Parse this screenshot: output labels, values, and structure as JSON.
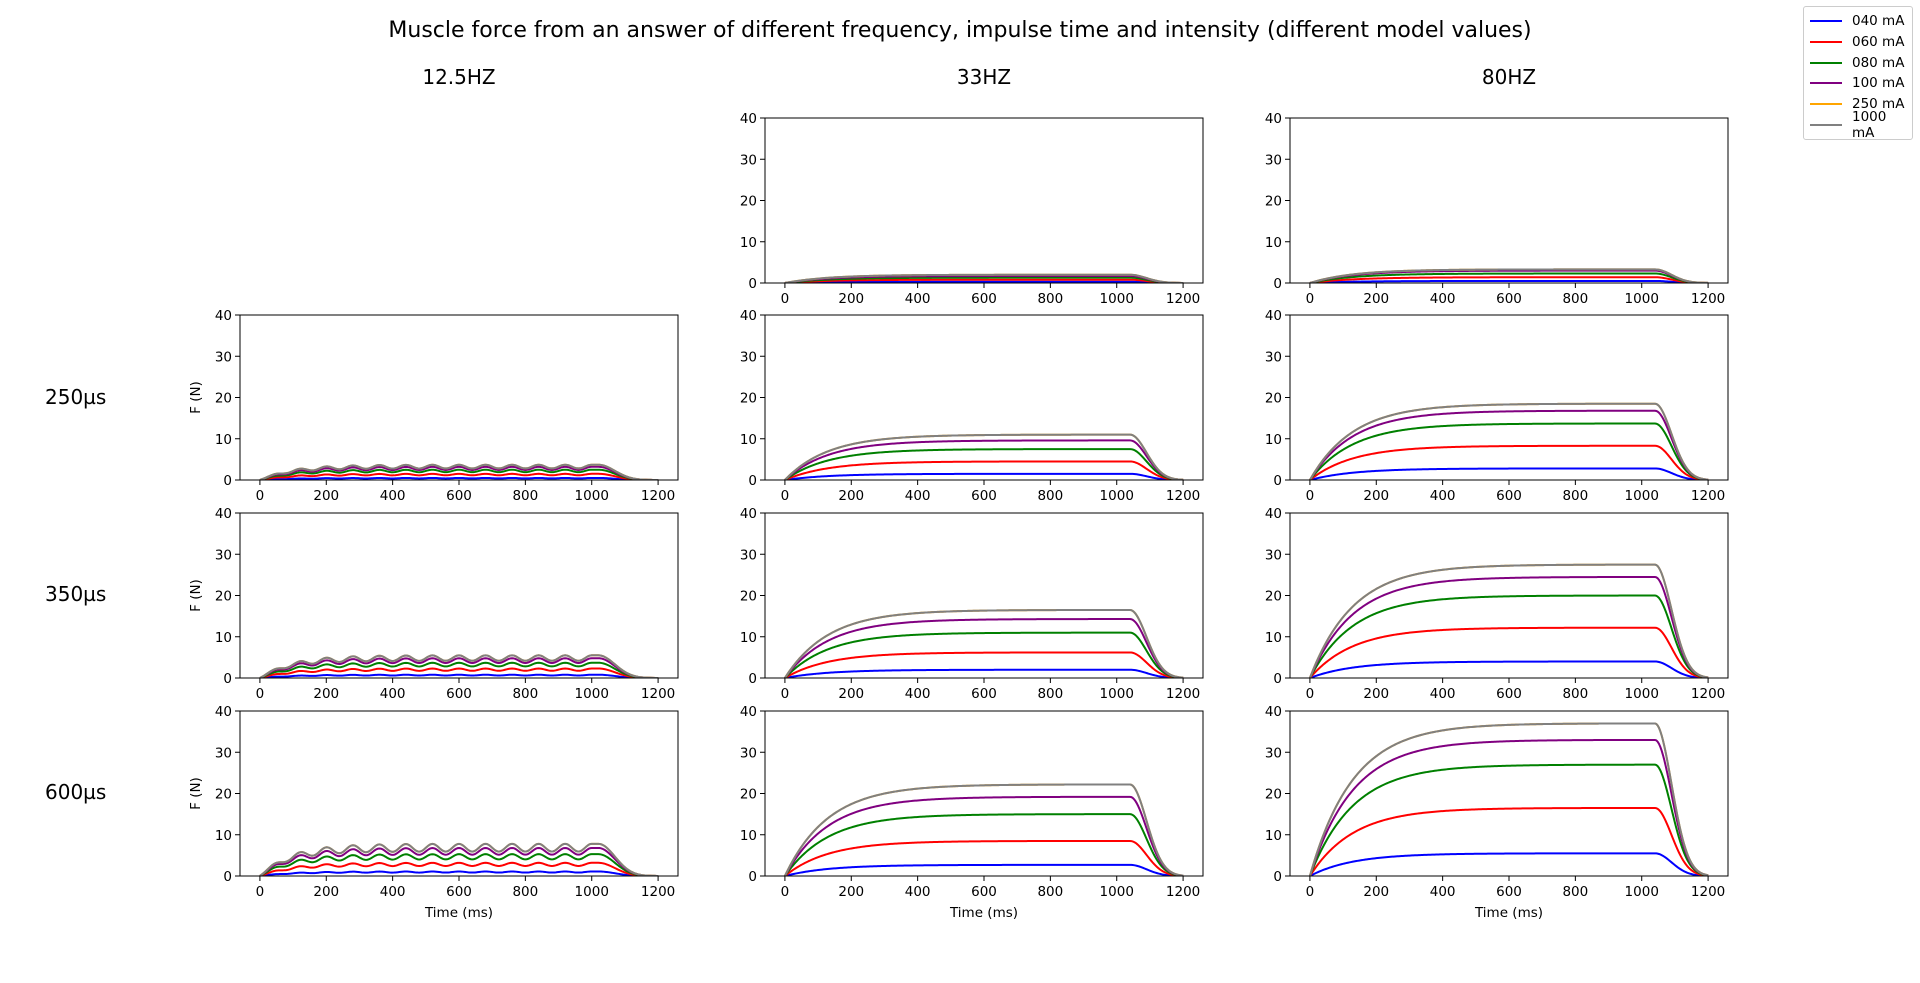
{
  "chart_data": {
    "type": "line",
    "title": "Muscle force from an answer of different frequency, impulse time and intensity (different model values)",
    "column_titles": [
      "12.5HZ",
      "33HZ",
      "80HZ"
    ],
    "row_titles": [
      "250µs",
      "350µs",
      "600µs"
    ],
    "xlabel": "Time (ms)",
    "ylabel": "F (N)",
    "xlim": [
      -60,
      1260
    ],
    "ylim": [
      0,
      40
    ],
    "xticks": [
      0,
      200,
      400,
      600,
      800,
      1000,
      1200
    ],
    "yticks": [
      0,
      10,
      20,
      30,
      40
    ],
    "stimulus_end_ms": 1000,
    "series": [
      {
        "name": "040 mA",
        "color": "#0000ff"
      },
      {
        "name": "060 mA",
        "color": "#ff0000"
      },
      {
        "name": "080 mA",
        "color": "#008000"
      },
      {
        "name": "100 mA",
        "color": "#800080"
      },
      {
        "name": "250 mA",
        "color": "#ffa500"
      },
      {
        "name": "1000 mA",
        "color": "#808080"
      }
    ],
    "legend": "top-right",
    "grid": false,
    "panels": [
      {
        "id": "top-33hz",
        "column": "33HZ",
        "row": "",
        "plateaus": [
          0.3,
          0.8,
          1.3,
          1.7,
          2.0,
          2.0
        ]
      },
      {
        "id": "top-80hz",
        "column": "80HZ",
        "row": "",
        "plateaus": [
          0.5,
          1.4,
          2.3,
          3.0,
          3.3,
          3.3
        ]
      },
      {
        "id": "250us-12.5hz",
        "column": "12.5HZ",
        "row": "250µs",
        "plateaus": [
          0.5,
          1.5,
          2.5,
          3.2,
          3.7,
          3.7
        ]
      },
      {
        "id": "250us-33hz",
        "column": "33HZ",
        "row": "250µs",
        "plateaus": [
          1.5,
          4.5,
          7.5,
          9.6,
          11.0,
          11.0
        ]
      },
      {
        "id": "250us-80hz",
        "column": "80HZ",
        "row": "250µs",
        "plateaus": [
          2.8,
          8.3,
          13.7,
          16.8,
          18.5,
          18.5
        ]
      },
      {
        "id": "350us-12.5hz",
        "column": "12.5HZ",
        "row": "350µs",
        "plateaus": [
          0.8,
          2.3,
          3.7,
          4.8,
          5.5,
          5.5
        ]
      },
      {
        "id": "350us-33hz",
        "column": "33HZ",
        "row": "350µs",
        "plateaus": [
          2.0,
          6.2,
          11.0,
          14.3,
          16.5,
          16.5
        ]
      },
      {
        "id": "350us-80hz",
        "column": "80HZ",
        "row": "350µs",
        "plateaus": [
          4.0,
          12.2,
          20.0,
          24.5,
          27.5,
          27.5
        ]
      },
      {
        "id": "600us-12.5hz",
        "column": "12.5HZ",
        "row": "600µs",
        "plateaus": [
          1.1,
          3.2,
          5.3,
          6.8,
          7.8,
          7.8
        ]
      },
      {
        "id": "600us-33hz",
        "column": "33HZ",
        "row": "600µs",
        "plateaus": [
          2.7,
          8.5,
          15.0,
          19.2,
          22.2,
          22.2
        ]
      },
      {
        "id": "600us-80hz",
        "column": "80HZ",
        "row": "600µs",
        "plateaus": [
          5.5,
          16.5,
          27.0,
          33.0,
          37.0,
          37.0
        ]
      }
    ]
  }
}
